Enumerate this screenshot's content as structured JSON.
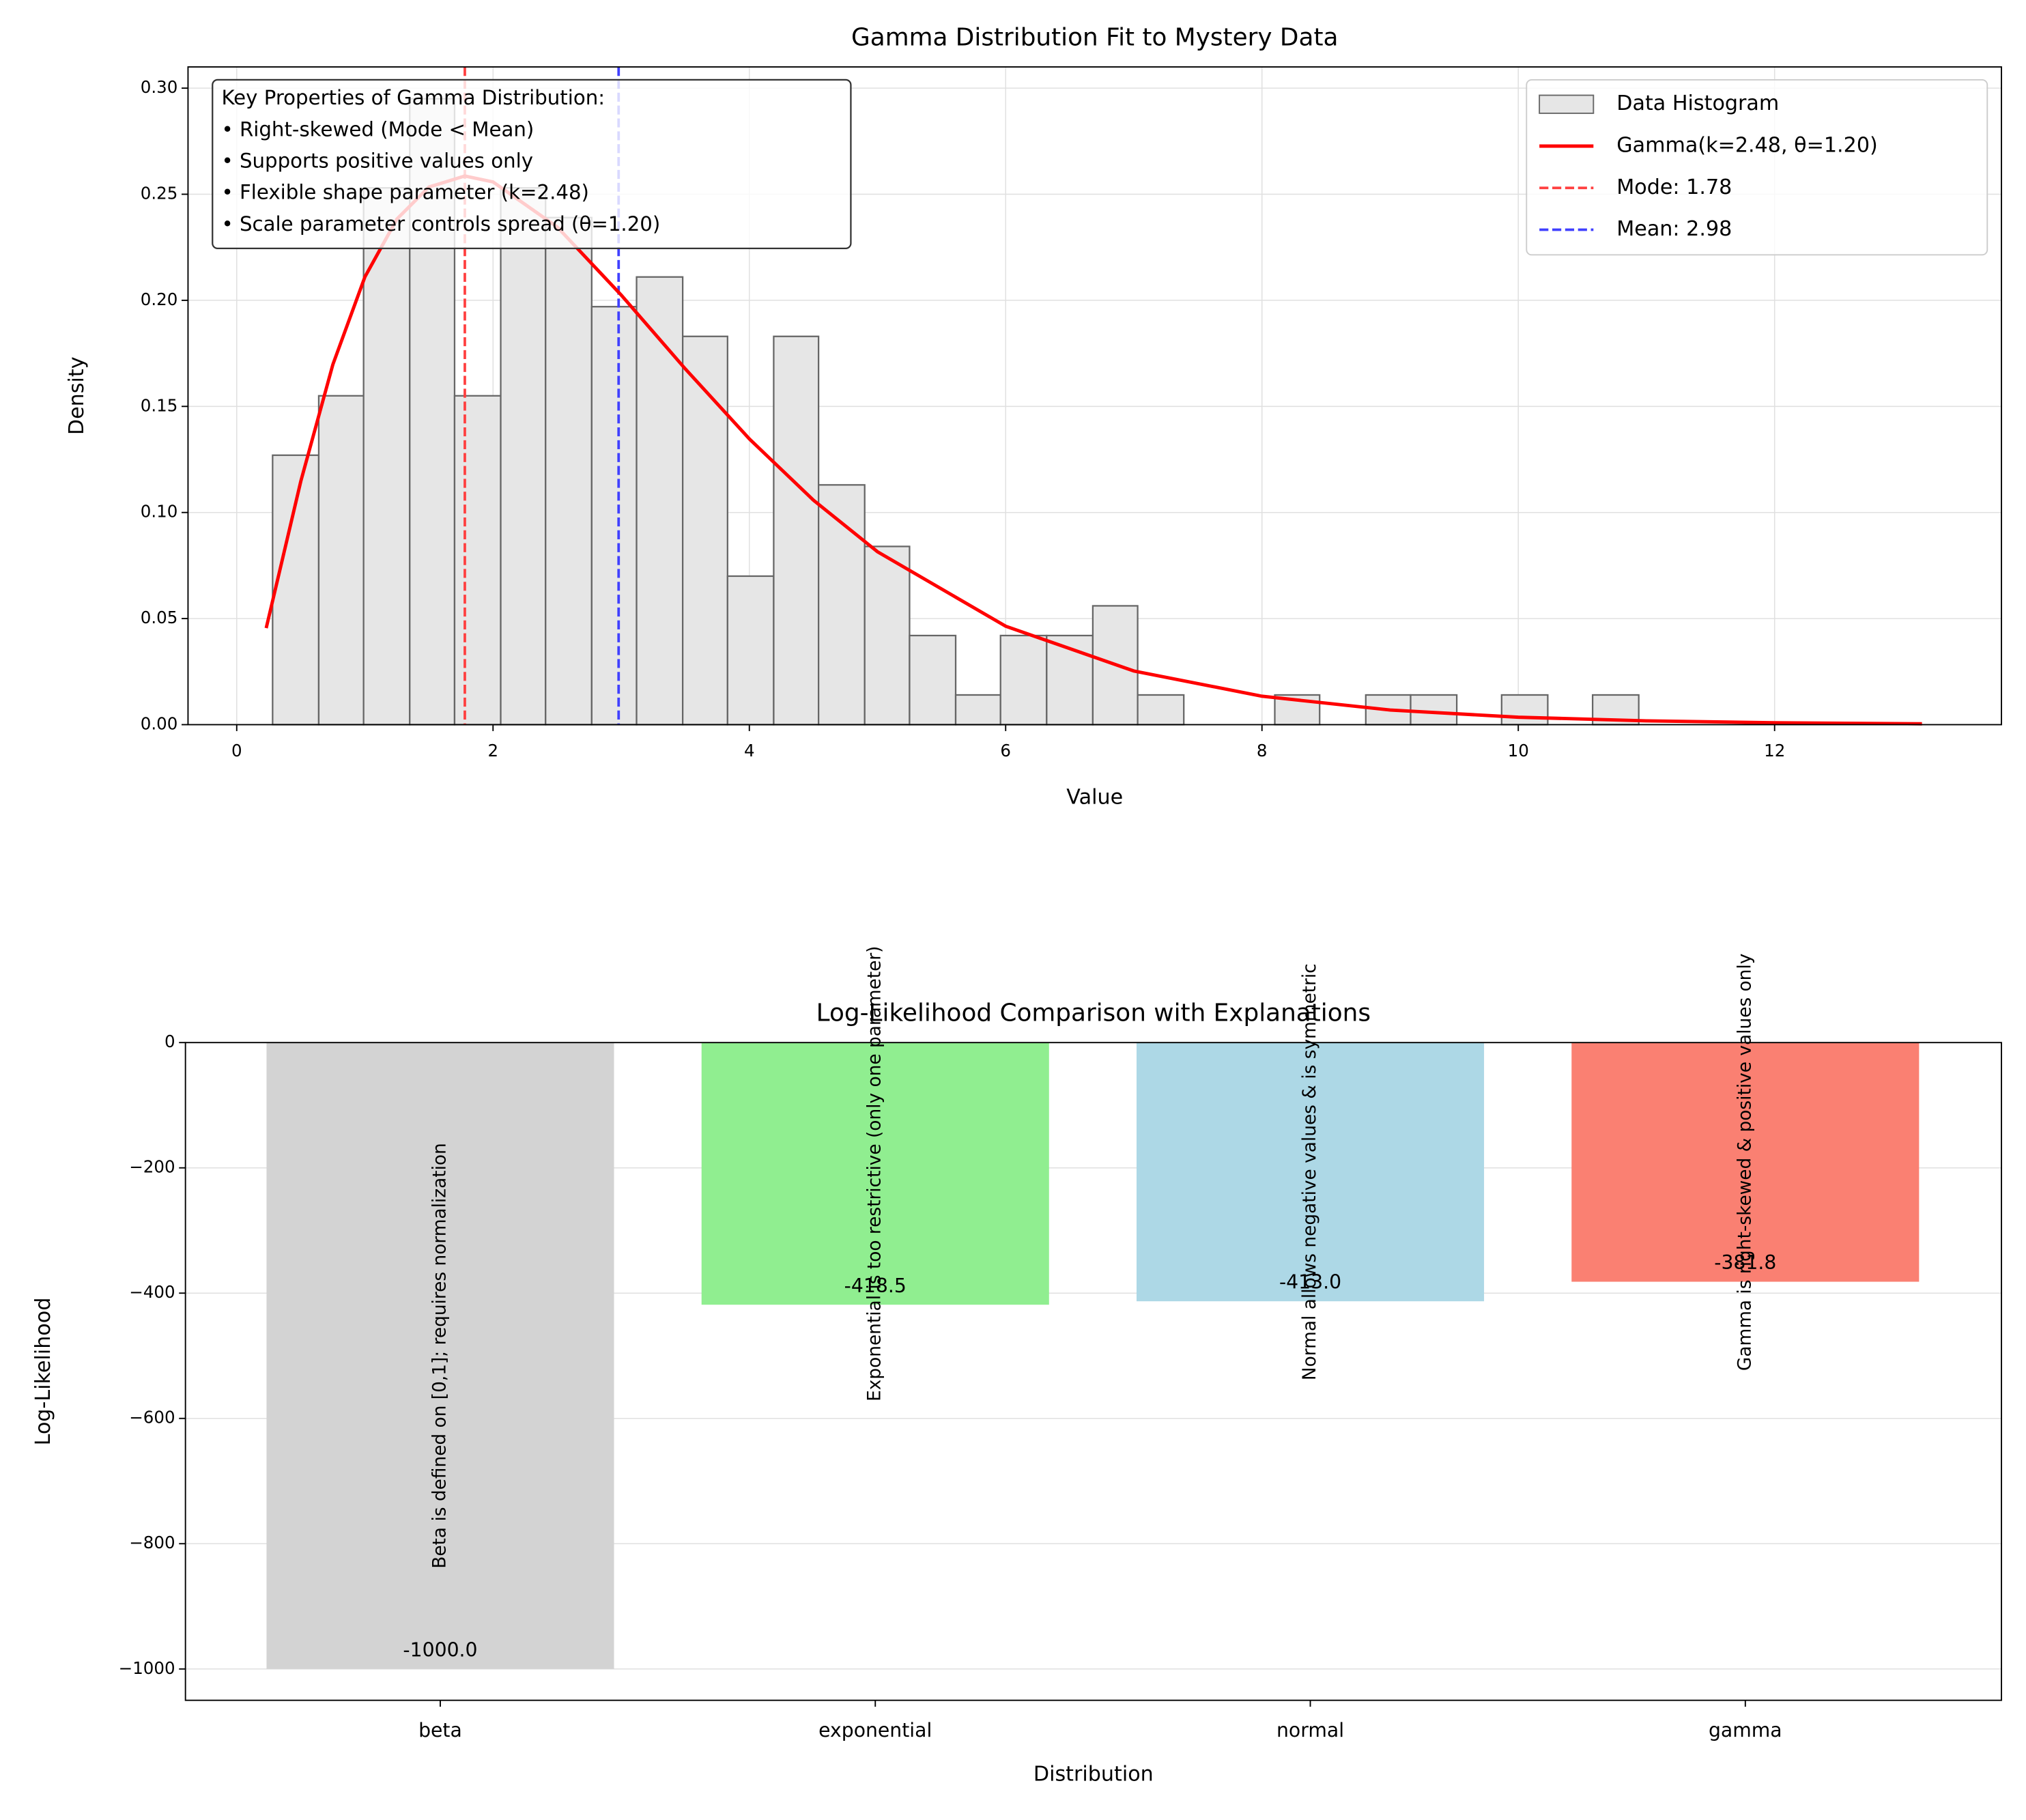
{
  "chart_data": [
    {
      "type": "histogram",
      "title": "Gamma Distribution Fit to Mystery Data",
      "xlabel": "Value",
      "ylabel": "Density",
      "xlim": [
        -0.38,
        13.77
      ],
      "ylim": [
        0,
        0.31
      ],
      "xticks": [
        0,
        2,
        4,
        6,
        8,
        10,
        12
      ],
      "yticks": [
        {
          "value": 0,
          "label": "0.00"
        },
        {
          "value": 0.05,
          "label": "0.05"
        },
        {
          "value": 0.1,
          "label": "0.10"
        },
        {
          "value": 0.15,
          "label": "0.15"
        },
        {
          "value": 0.2,
          "label": "0.20"
        },
        {
          "value": 0.25,
          "label": "0.25"
        },
        {
          "value": 0.3,
          "label": "0.30"
        }
      ],
      "grid": true,
      "legend": "upper right",
      "histogram": {
        "name": "Data Histogram",
        "color": "#e6e6e6",
        "edgecolor": "#666666",
        "bins": [
          0.28,
          0.64,
          0.99,
          1.35,
          1.7,
          2.06,
          2.41,
          2.77,
          3.12,
          3.48,
          3.83,
          4.19,
          4.54,
          4.9,
          5.25,
          5.61,
          5.96,
          6.32,
          6.68,
          7.03,
          7.39,
          7.74,
          8.1,
          8.45,
          8.81,
          9.16,
          9.52,
          9.87,
          10.23,
          10.58,
          10.94
        ],
        "values": [
          0.127,
          0.155,
          0.253,
          0.295,
          0.155,
          0.253,
          0.239,
          0.197,
          0.211,
          0.183,
          0.07,
          0.183,
          0.113,
          0.084,
          0.042,
          0.014,
          0.042,
          0.042,
          0.056,
          0.014,
          0,
          0,
          0.014,
          0,
          0.014,
          0.014,
          0,
          0.014,
          0,
          0.014
        ]
      },
      "series": [
        {
          "name": "Gamma(k=2.48, θ=1.20)",
          "color": "#ff0000",
          "x": [
            0.23,
            0.5,
            0.75,
            1,
            1.25,
            1.5,
            1.78,
            2,
            2.5,
            3,
            3.5,
            4,
            4.5,
            5,
            6,
            7,
            8,
            9,
            10,
            11,
            12,
            13.15
          ],
          "values": [
            0.0455,
            0.1147,
            0.1697,
            0.211,
            0.2383,
            0.2534,
            0.2586,
            0.2558,
            0.2346,
            0.2025,
            0.1677,
            0.1347,
            0.1058,
            0.0815,
            0.0464,
            0.0253,
            0.0134,
            0.0069,
            0.0035,
            0.0018,
            0.0009,
            0.0004
          ]
        }
      ],
      "vlines": [
        {
          "name": "Mode: 1.78",
          "x": 1.78,
          "color": "#ff4040"
        },
        {
          "name": "Mean: 2.98",
          "x": 2.98,
          "color": "#4040ff"
        }
      ],
      "textbox": [
        "Key Properties of Gamma Distribution:",
        "• Right-skewed (Mode < Mean)",
        "• Supports positive values only",
        "• Flexible shape parameter (k=2.48)",
        "• Scale parameter controls spread (θ=1.20)"
      ]
    },
    {
      "type": "bar",
      "title": "Log-Likelihood Comparison with Explanations",
      "xlabel": "Distribution",
      "ylabel": "Log-Likelihood",
      "categories": [
        "beta",
        "exponential",
        "normal",
        "gamma"
      ],
      "values": [
        -1000,
        -418.5,
        -413.0,
        -381.8
      ],
      "value_labels": [
        "-1000.0",
        "-418.5",
        "-413.0",
        "-381.8"
      ],
      "colors": [
        "#d3d3d3",
        "#90ee90",
        "#add8e6",
        "#fa8072"
      ],
      "annotations": [
        "Beta is defined on [0,1]; requires normalization",
        "Exponential is too restrictive (only one parameter)",
        "Normal allows negative values & is symmetric",
        "Gamma is right-skewed & positive values only"
      ],
      "ylim": [
        -1050,
        0
      ],
      "yticks": [
        0,
        {
          "value": -200,
          "label": "−200"
        },
        {
          "value": -400,
          "label": "−400"
        },
        {
          "value": -600,
          "label": "−600"
        },
        {
          "value": -800,
          "label": "−800"
        },
        {
          "value": -1000,
          "label": "−1000"
        }
      ],
      "grid": "y"
    }
  ]
}
